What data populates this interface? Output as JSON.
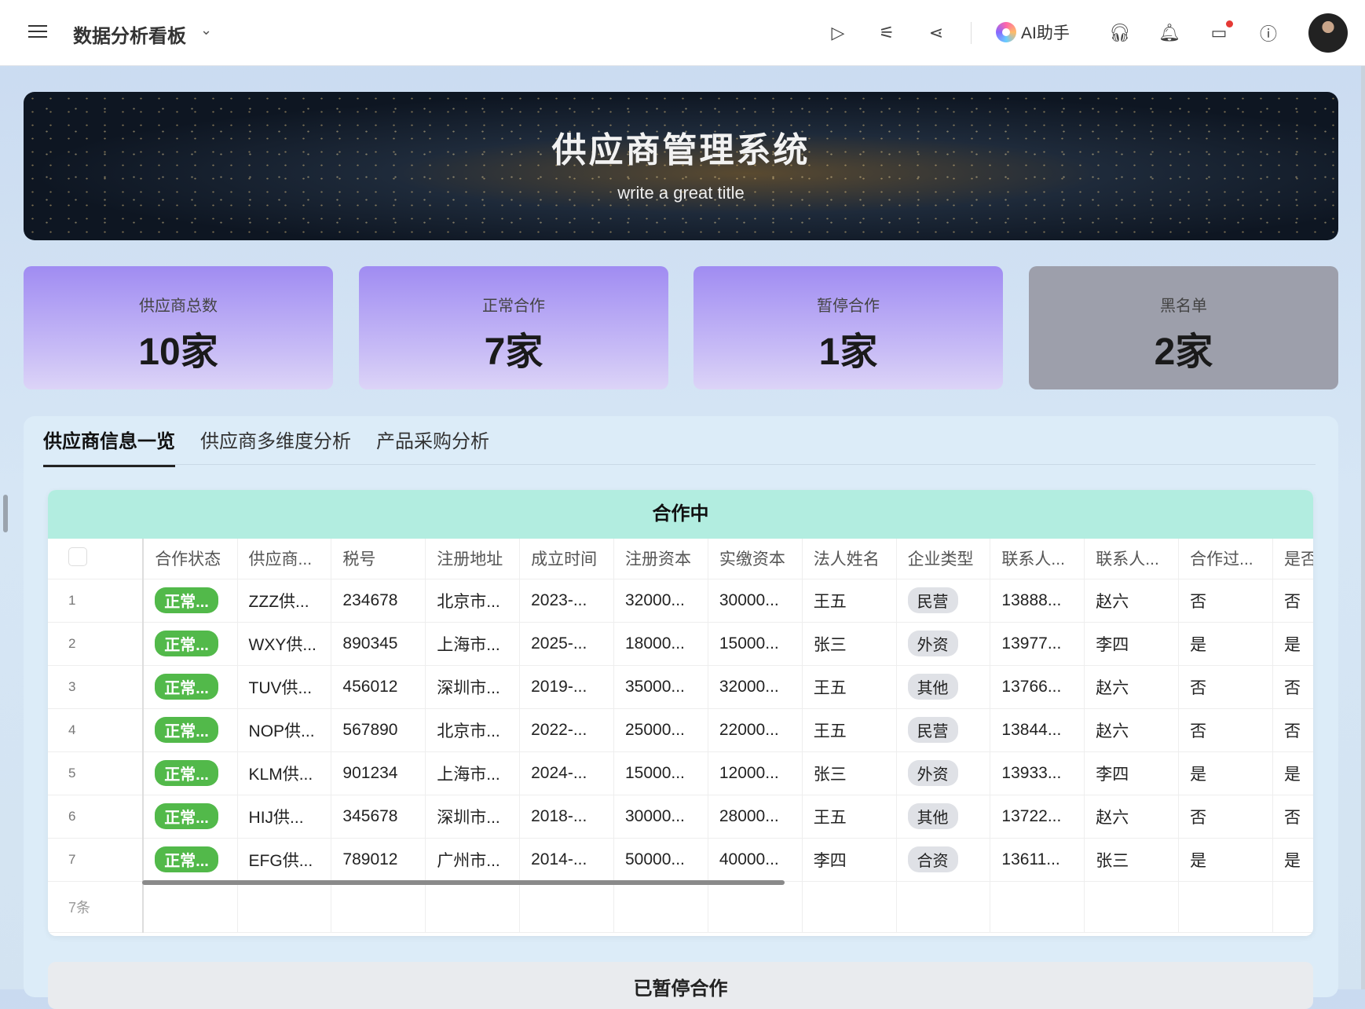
{
  "header": {
    "title": "数据分析看板",
    "ai_label": "AI助手",
    "icons": [
      "menu-icon",
      "chevron-down-icon",
      "play-icon",
      "sliders-icon",
      "share-icon",
      "headset-icon",
      "bell-icon",
      "inbox-icon",
      "help-icon"
    ]
  },
  "banner": {
    "title": "供应商管理系统",
    "subtitle": "write a great title"
  },
  "stats": [
    {
      "label": "供应商总数",
      "value": "10家"
    },
    {
      "label": "正常合作",
      "value": "7家"
    },
    {
      "label": "暂停合作",
      "value": "1家"
    },
    {
      "label": "黑名单",
      "value": "2家"
    }
  ],
  "tabs": [
    {
      "label": "供应商信息一览"
    },
    {
      "label": "供应商多维度分析"
    },
    {
      "label": "产品采购分析"
    }
  ],
  "table": {
    "title": "合作中",
    "columns": [
      "合作状态",
      "供应商...",
      "税号",
      "注册地址",
      "成立时间",
      "注册资本",
      "实缴资本",
      "法人姓名",
      "企业类型",
      "联系人...",
      "联系人...",
      "合作过...",
      "是否参"
    ],
    "rows": [
      [
        "1",
        "正常...",
        "ZZZ供...",
        "234678",
        "北京市...",
        "2023-...",
        "32000...",
        "30000...",
        "王五",
        "民营",
        "13888...",
        "赵六",
        "否",
        "否"
      ],
      [
        "2",
        "正常...",
        "WXY供...",
        "890345",
        "上海市...",
        "2025-...",
        "18000...",
        "15000...",
        "张三",
        "外资",
        "13977...",
        "李四",
        "是",
        "是"
      ],
      [
        "3",
        "正常...",
        "TUV供...",
        "456012",
        "深圳市...",
        "2019-...",
        "35000...",
        "32000...",
        "王五",
        "其他",
        "13766...",
        "赵六",
        "否",
        "否"
      ],
      [
        "4",
        "正常...",
        "NOP供...",
        "567890",
        "北京市...",
        "2022-...",
        "25000...",
        "22000...",
        "王五",
        "民营",
        "13844...",
        "赵六",
        "否",
        "否"
      ],
      [
        "5",
        "正常...",
        "KLM供...",
        "901234",
        "上海市...",
        "2024-...",
        "15000...",
        "12000...",
        "张三",
        "外资",
        "13933...",
        "李四",
        "是",
        "是"
      ],
      [
        "6",
        "正常...",
        "HIJ供...",
        "345678",
        "深圳市...",
        "2018-...",
        "30000...",
        "28000...",
        "王五",
        "其他",
        "13722...",
        "赵六",
        "否",
        "否"
      ],
      [
        "7",
        "正常...",
        "EFG供...",
        "789012",
        "广州市...",
        "2014-...",
        "50000...",
        "40000...",
        "李四",
        "合资",
        "13611...",
        "张三",
        "是",
        "是"
      ]
    ],
    "footer": "7条"
  },
  "table2": {
    "title": "已暂停合作"
  },
  "colors": {
    "status_green": "#52b94a",
    "header_green": "#b2ede0",
    "card_purple": "#a08cf2",
    "card_gray": "#9d9fab"
  }
}
